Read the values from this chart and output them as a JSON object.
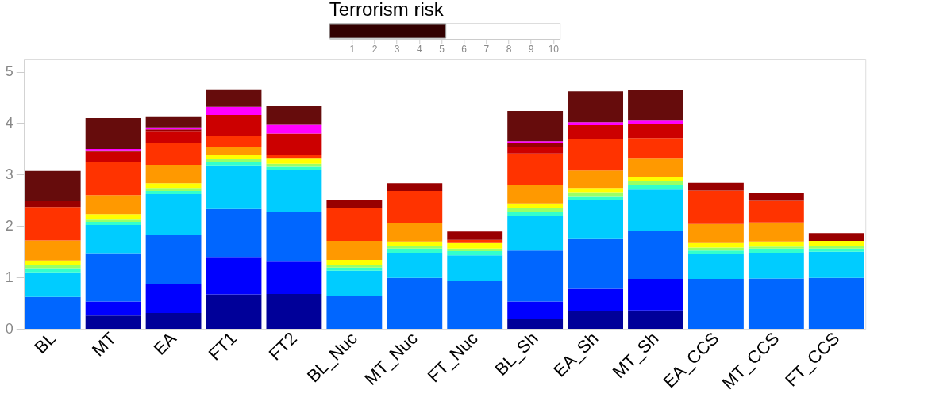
{
  "chart_data": [
    {
      "type": "bar",
      "orientation": "horizontal",
      "title": "Terrorism risk",
      "categories": [
        null
      ],
      "values": [
        5.2
      ],
      "color": "#330000",
      "xlim": [
        0,
        10.3
      ],
      "xticks": [
        1,
        2,
        3,
        4,
        5,
        6,
        7,
        8,
        9,
        10
      ]
    },
    {
      "type": "bar",
      "stacked": true,
      "categories": [
        "BL",
        "MT",
        "EA",
        "FT1",
        "FT2",
        "BL_Nuc",
        "MT_Nuc",
        "FT_Nuc",
        "BL_Sh",
        "EA_Sh",
        "MT_Sh",
        "EA_CCS",
        "MT_CCS",
        "FT_CCS"
      ],
      "series": [
        {
          "color": "#000099",
          "values": [
            null,
            0.26,
            0.31,
            0.67,
            0.68,
            null,
            null,
            null,
            0.2,
            0.35,
            0.36,
            null,
            null,
            null
          ]
        },
        {
          "color": "#0000ff",
          "values": [
            null,
            0.27,
            0.56,
            0.73,
            0.64,
            null,
            null,
            null,
            0.33,
            0.43,
            0.61,
            null,
            null,
            null
          ]
        },
        {
          "color": "#0066ff",
          "values": [
            0.62,
            0.94,
            0.96,
            0.93,
            0.95,
            0.64,
            0.99,
            0.94,
            0.99,
            0.98,
            0.94,
            0.97,
            0.98,
            0.99
          ]
        },
        {
          "color": "#00ccff",
          "values": [
            0.48,
            0.55,
            0.79,
            0.85,
            0.82,
            0.49,
            0.49,
            0.49,
            0.67,
            0.75,
            0.8,
            0.49,
            0.5,
            0.51
          ]
        },
        {
          "color": "#33ffcc",
          "values": [
            0.08,
            0.06,
            0.06,
            0.06,
            0.06,
            0.06,
            0.08,
            0.08,
            0.08,
            0.07,
            0.08,
            0.06,
            0.08,
            0.06
          ]
        },
        {
          "color": "#99ff66",
          "values": [
            0.06,
            0.06,
            0.06,
            0.06,
            0.06,
            0.06,
            0.05,
            0.05,
            0.08,
            0.08,
            0.08,
            0.06,
            0.04,
            0.06
          ]
        },
        {
          "color": "#ffff00",
          "values": [
            0.09,
            0.09,
            0.09,
            0.09,
            0.1,
            0.09,
            0.09,
            0.11,
            0.09,
            0.08,
            0.09,
            0.09,
            0.1,
            0.09
          ]
        },
        {
          "color": "#ff9900",
          "values": [
            0.39,
            0.37,
            0.36,
            0.15,
            null,
            0.37,
            0.36,
            null,
            0.35,
            0.34,
            0.35,
            0.37,
            0.37,
            null
          ]
        },
        {
          "color": "#ff3300",
          "values": [
            0.65,
            0.65,
            0.42,
            0.21,
            0.07,
            0.64,
            0.62,
            0.06,
            0.62,
            0.61,
            0.4,
            0.65,
            0.42,
            null
          ]
        },
        {
          "color": "#cc0000",
          "values": [
            null,
            0.19,
            0.24,
            0.41,
            0.42,
            null,
            null,
            null,
            0.13,
            0.27,
            0.28,
            null,
            null,
            null
          ]
        },
        {
          "color": "#990000",
          "values": [
            0.11,
            0.03,
            0.03,
            null,
            null,
            0.15,
            0.15,
            0.16,
            0.08,
            null,
            null,
            0.15,
            0.15,
            0.15
          ]
        },
        {
          "color": "#ff00ff",
          "values": [
            null,
            0.03,
            0.04,
            0.16,
            0.17,
            null,
            null,
            null,
            0.03,
            0.06,
            0.06,
            null,
            null,
            null
          ]
        },
        {
          "color": "#660c0c",
          "values": [
            0.59,
            0.6,
            0.2,
            0.34,
            0.36,
            null,
            null,
            null,
            0.59,
            0.6,
            0.6,
            null,
            null,
            null
          ]
        }
      ],
      "ylim": [
        0,
        5.24
      ],
      "yticks": [
        0,
        1,
        2,
        3,
        4,
        5
      ]
    }
  ]
}
